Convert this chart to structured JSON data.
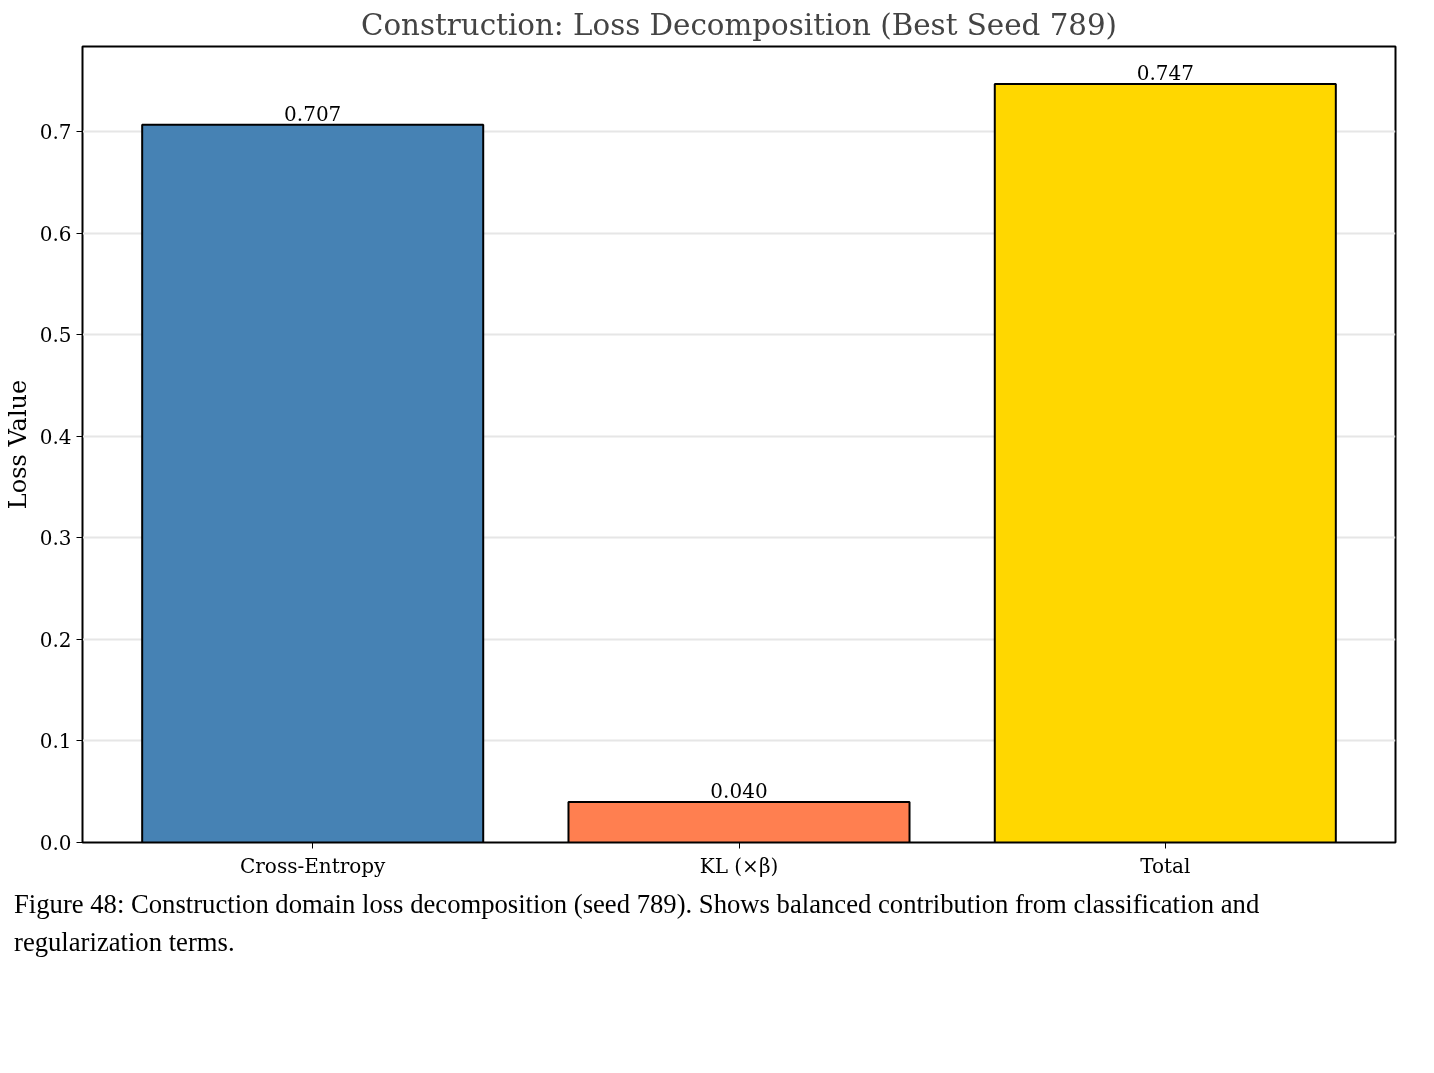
{
  "chart_data": {
    "type": "bar",
    "title": "Construction: Loss Decomposition (Best Seed 789)",
    "ylabel": "Loss Value",
    "categories": [
      "Cross-Entropy",
      "KL (×β)",
      "Total"
    ],
    "values": [
      0.707,
      0.04,
      0.747
    ],
    "colors": [
      "#4682b4",
      "#ff7f50",
      "#ffd700"
    ],
    "value_labels": [
      "0.707",
      "0.040",
      "0.747"
    ],
    "ylim": [
      0,
      0.784
    ],
    "yticks": [
      {
        "value": 0,
        "label": "0.0"
      },
      0.1,
      0.2,
      0.3,
      0.4,
      0.5,
      0.6,
      0.7
    ],
    "grid": "y",
    "annotations": [
      "Figure 48: Construction domain loss decomposition (seed 789). Shows balanced contribution from classification and regularization terms."
    ]
  }
}
